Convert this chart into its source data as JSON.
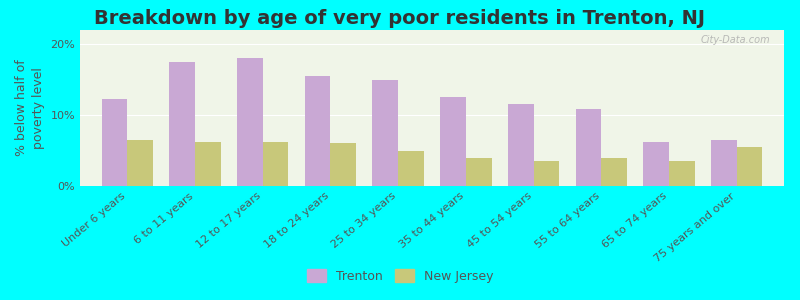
{
  "title": "Breakdown by age of very poor residents in Trenton, NJ",
  "ylabel": "% below half of\npoverty level",
  "categories": [
    "Under 6 years",
    "6 to 11 years",
    "12 to 17 years",
    "18 to 24 years",
    "25 to 34 years",
    "35 to 44 years",
    "45 to 54 years",
    "55 to 64 years",
    "65 to 74 years",
    "75 years and over"
  ],
  "trenton": [
    12.2,
    17.5,
    18.0,
    15.5,
    15.0,
    12.5,
    11.5,
    10.8,
    6.2,
    6.5
  ],
  "new_jersey": [
    6.5,
    6.2,
    6.2,
    6.0,
    5.0,
    4.0,
    3.5,
    4.0,
    3.5,
    5.5
  ],
  "trenton_color": "#c9a8d4",
  "nj_color": "#c8c87a",
  "background_color": "#00ffff",
  "plot_bg_color": "#f0f5e8",
  "ylim": [
    0,
    22
  ],
  "yticks": [
    0,
    10,
    20
  ],
  "ytick_labels": [
    "0%",
    "10%",
    "20%"
  ],
  "title_fontsize": 14,
  "axis_label_fontsize": 9,
  "tick_fontsize": 8,
  "bar_width": 0.38,
  "watermark": "City-Data.com"
}
